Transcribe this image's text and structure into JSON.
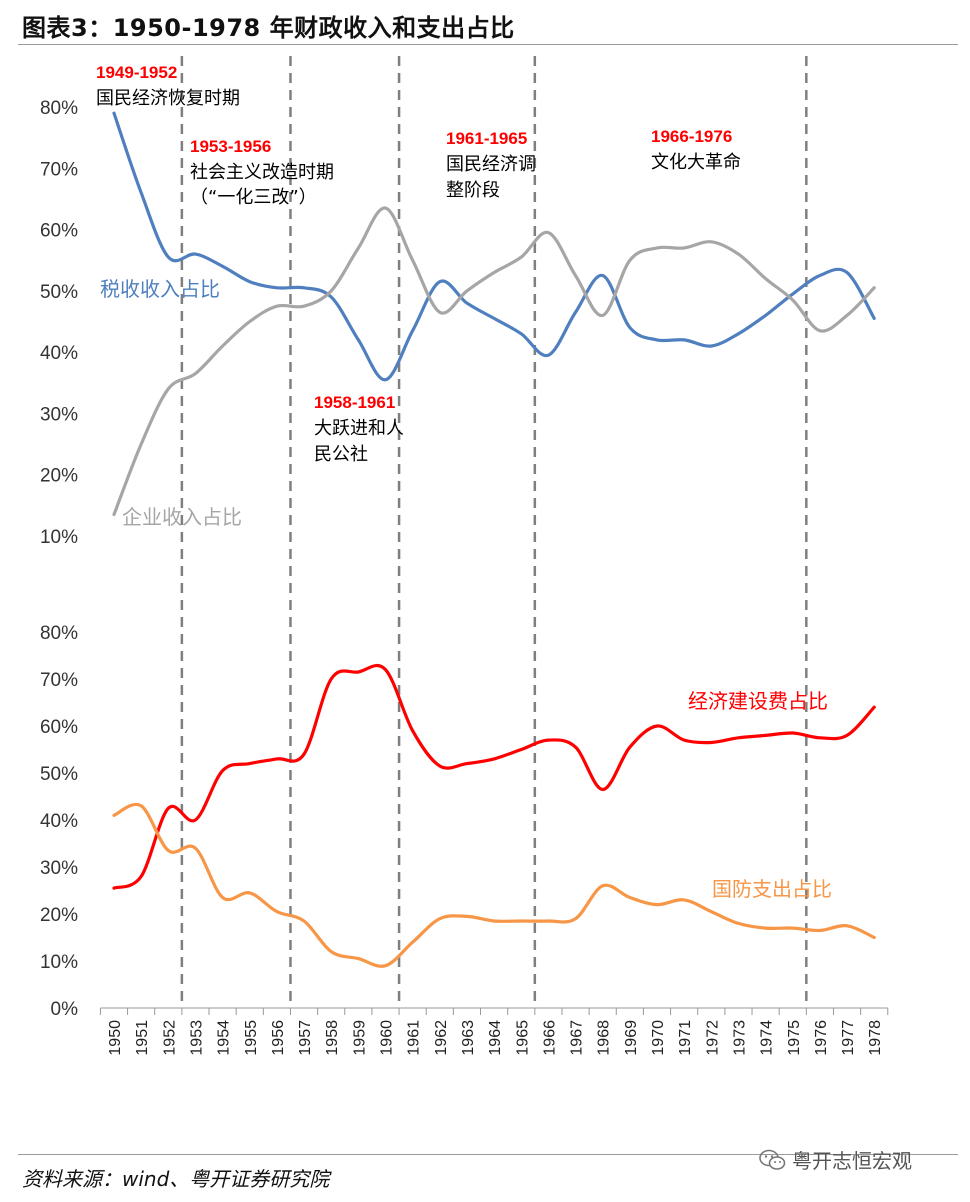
{
  "title": "图表3：1950-1978 年财政收入和支出占比",
  "source": "资料来源：wind、粤开证券研究院",
  "watermark": "粤开志恒宏观",
  "periods": [
    {
      "years": "1949-1952",
      "name_lines": [
        "国民经济恢复时期"
      ]
    },
    {
      "years": "1953-1956",
      "name_lines": [
        "社会主义改造时期",
        "（“一化三改”）"
      ]
    },
    {
      "years": "1958-1961",
      "name_lines": [
        "大跃进和人",
        "民公社"
      ]
    },
    {
      "years": "1961-1965",
      "name_lines": [
        "国民经济调",
        "整阶段"
      ]
    },
    {
      "years": "1966-1976",
      "name_lines": [
        "文化大革命"
      ]
    }
  ],
  "chart_data": [
    {
      "type": "line",
      "x": [
        "1950",
        "1951",
        "1952",
        "1953",
        "1954",
        "1955",
        "1956",
        "1957",
        "1958",
        "1959",
        "1960",
        "1961",
        "1962",
        "1963",
        "1964",
        "1965",
        "1966",
        "1967",
        "1968",
        "1969",
        "1970",
        "1971",
        "1972",
        "1973",
        "1974",
        "1975",
        "1976",
        "1977",
        "1978"
      ],
      "yticks": [
        "10%",
        "20%",
        "30%",
        "40%",
        "50%",
        "60%",
        "70%",
        "80%"
      ],
      "ylim": [
        10,
        80
      ],
      "series": [
        {
          "name": "税收收入占比",
          "color": "#4f7fbf",
          "values": [
            79,
            66,
            55.5,
            56,
            54,
            51.5,
            50.5,
            50.5,
            49,
            42,
            35.5,
            43.5,
            51.5,
            48,
            45.5,
            43,
            39.5,
            46.5,
            52.5,
            44,
            42,
            42,
            41,
            43,
            46,
            49.5,
            52.5,
            53,
            45.5
          ]
        },
        {
          "name": "企业收入占比",
          "color": "#a6a6a6",
          "values": [
            13.5,
            25,
            34,
            36.5,
            41,
            45,
            47.5,
            47.5,
            50,
            57,
            63.5,
            55,
            46.5,
            50,
            53,
            55.5,
            59.5,
            52.5,
            46,
            55,
            57,
            57,
            58,
            56,
            52,
            48.5,
            43.5,
            46,
            50.5
          ]
        }
      ]
    },
    {
      "type": "line",
      "x": [
        "1950",
        "1951",
        "1952",
        "1953",
        "1954",
        "1955",
        "1956",
        "1957",
        "1958",
        "1959",
        "1960",
        "1961",
        "1962",
        "1963",
        "1964",
        "1965",
        "1966",
        "1967",
        "1968",
        "1969",
        "1970",
        "1971",
        "1972",
        "1973",
        "1974",
        "1975",
        "1976",
        "1977",
        "1978"
      ],
      "xtick_labels": [
        "1950",
        "1951",
        "1952",
        "1953",
        "1954",
        "1955",
        "1956",
        "1957",
        "1958",
        "1959",
        "1960",
        "1961",
        "1962",
        "1963",
        "1964",
        "1965",
        "1966",
        "1967",
        "1968",
        "1969",
        "1970",
        "1971",
        "1972",
        "1973",
        "1974",
        "1975",
        "1976",
        "1977",
        "1978"
      ],
      "yticks": [
        "0%",
        "10%",
        "20%",
        "30%",
        "40%",
        "50%",
        "60%",
        "70%",
        "80%"
      ],
      "ylim": [
        0,
        80
      ],
      "series": [
        {
          "name": "经济建设费占比",
          "color": "#ff0000",
          "values": [
            25.5,
            28,
            42.5,
            40,
            50.5,
            52,
            53,
            54,
            70,
            71.5,
            72,
            59,
            51.5,
            52,
            53,
            55,
            57,
            55.5,
            46.5,
            55.5,
            60,
            57,
            56.5,
            57.5,
            58,
            58.5,
            57.5,
            58,
            64
          ]
        },
        {
          "name": "国防支出占比",
          "color": "#f79646",
          "values": [
            41,
            43,
            33.5,
            34,
            23.5,
            24.5,
            20.5,
            18.5,
            12,
            10.5,
            9,
            14,
            19,
            19.5,
            18.5,
            18.5,
            18.5,
            19,
            26,
            23.5,
            22,
            23,
            20.5,
            18,
            17,
            17,
            16.5,
            17.5,
            15
          ]
        }
      ]
    }
  ],
  "dividers": [
    "1952.5",
    "1956.5",
    "1960.5",
    "1965.5",
    "1975.5"
  ]
}
